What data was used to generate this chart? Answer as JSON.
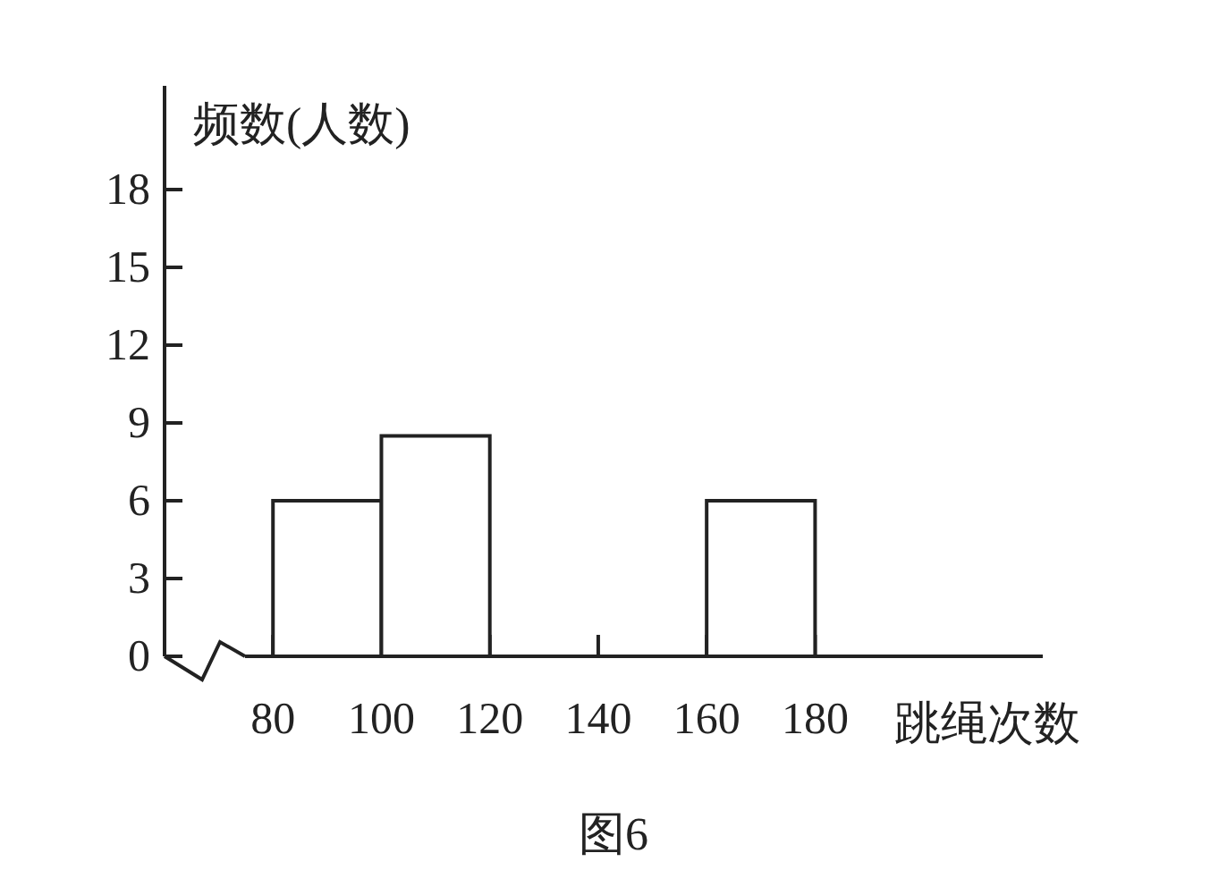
{
  "chart_data": {
    "type": "histogram",
    "xlabel": "跳绳次数",
    "ylabel": "频数(人数)",
    "bins": [
      80,
      100,
      120,
      140,
      160,
      180
    ],
    "values": [
      6,
      8.5,
      0,
      0,
      6
    ],
    "color": "#ffffff",
    "xlim": [
      60,
      222
    ],
    "ylim": [
      0,
      22
    ],
    "xticks": [
      80,
      100,
      120,
      140,
      160,
      180
    ],
    "yticks": [
      0,
      3,
      6,
      9,
      12,
      15,
      18
    ],
    "grid": false,
    "annotations": [
      "图6"
    ]
  }
}
